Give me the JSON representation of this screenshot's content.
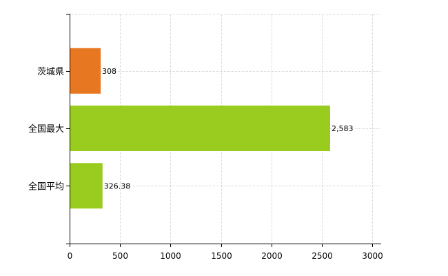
{
  "chart_data": {
    "type": "bar",
    "orientation": "horizontal",
    "categories": [
      "茨城県",
      "全国最大",
      "全国平均"
    ],
    "values": [
      308,
      2583,
      326.38
    ],
    "value_labels": [
      "308",
      "2,583",
      "326.38"
    ],
    "colors": [
      "#e87722",
      "#99cc1f",
      "#99cc1f"
    ],
    "xlim": [
      0,
      3000
    ],
    "xticks": [
      0,
      500,
      1000,
      1500,
      2000,
      2500,
      3000
    ],
    "grid": true,
    "legend": "none",
    "title": "",
    "xlabel": "",
    "ylabel": ""
  }
}
